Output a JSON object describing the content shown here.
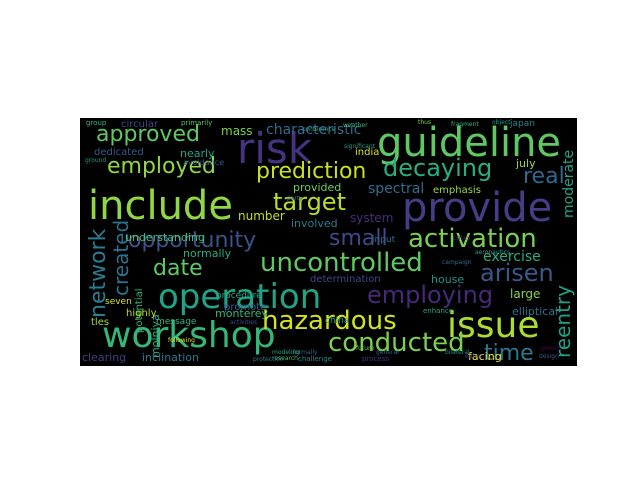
{
  "wordcloud": {
    "background": "#000000",
    "words": [
      {
        "text": "guideline",
        "color": "#5fc863"
      },
      {
        "text": "workshop",
        "color": "#35b779"
      },
      {
        "text": "include",
        "color": "#8fd744"
      },
      {
        "text": "provide",
        "color": "#433e85"
      },
      {
        "text": "operation",
        "color": "#20a386"
      },
      {
        "text": "risk",
        "color": "#46327e"
      },
      {
        "text": "issue",
        "color": "#addc30"
      },
      {
        "text": "approved",
        "color": "#5fc863"
      },
      {
        "text": "employed",
        "color": "#8fd744"
      },
      {
        "text": "decaying",
        "color": "#29af7f"
      },
      {
        "text": "target",
        "color": "#b8de29"
      },
      {
        "text": "activation",
        "color": "#7ad151"
      },
      {
        "text": "opportunity",
        "color": "#3b528b"
      },
      {
        "text": "uncontrolled",
        "color": "#5ec962"
      },
      {
        "text": "hazardous",
        "color": "#d2e21b"
      },
      {
        "text": "conducted",
        "color": "#7ad151"
      },
      {
        "text": "employing",
        "color": "#482878"
      },
      {
        "text": "prediction",
        "color": "#c8e020"
      },
      {
        "text": "arisen",
        "color": "#38598c"
      },
      {
        "text": "date",
        "color": "#5ec962"
      },
      {
        "text": "small",
        "color": "#3e4a89"
      },
      {
        "text": "time",
        "color": "#2a788e"
      },
      {
        "text": "network",
        "color": "#287d8e"
      },
      {
        "text": "created",
        "color": "#2c728e"
      },
      {
        "text": "reentry",
        "color": "#1fa188"
      },
      {
        "text": "characteristic",
        "color": "#31688e"
      },
      {
        "text": "real",
        "color": "#31688e"
      },
      {
        "text": "mass",
        "color": "#7ad151"
      },
      {
        "text": "exercise",
        "color": "#27ad81"
      },
      {
        "text": "moderate",
        "color": "#20a486"
      },
      {
        "text": "spectral",
        "color": "#2e6e8e"
      },
      {
        "text": "emphasis",
        "color": "#95d840"
      },
      {
        "text": "july",
        "color": "#9fda3a"
      },
      {
        "text": "india",
        "color": "#d8e219"
      },
      {
        "text": "provided",
        "color": "#6ece58"
      },
      {
        "text": "involved",
        "color": "#26818e"
      },
      {
        "text": "number",
        "color": "#c2df23"
      },
      {
        "text": "system",
        "color": "#472d7b"
      },
      {
        "text": "understanding",
        "color": "#3dbc74"
      },
      {
        "text": "normally",
        "color": "#28ae80"
      },
      {
        "text": "procedure",
        "color": "#22a785"
      },
      {
        "text": "promote",
        "color": "#32658e"
      },
      {
        "text": "monterey",
        "color": "#31b57b"
      },
      {
        "text": "determination",
        "color": "#3f4889"
      },
      {
        "text": "house",
        "color": "#21918c"
      },
      {
        "text": "large",
        "color": "#86d549"
      },
      {
        "text": "elliptical",
        "color": "#2c728e"
      },
      {
        "text": "message",
        "color": "#2db27d"
      },
      {
        "text": "highly",
        "color": "#b5de2b"
      },
      {
        "text": "potential",
        "color": "#2fb47c"
      },
      {
        "text": "molniya",
        "color": "#27ad81"
      },
      {
        "text": "seven",
        "color": "#d0e11c"
      },
      {
        "text": "circular",
        "color": "#3e4989"
      },
      {
        "text": "primarily",
        "color": "#50c46a"
      },
      {
        "text": "dedicated",
        "color": "#375a8c"
      },
      {
        "text": "nearly",
        "color": "#20a486"
      },
      {
        "text": "avoidance",
        "color": "#3b528b"
      },
      {
        "text": "inclination",
        "color": "#2a788e"
      },
      {
        "text": "clearing",
        "color": "#433e85"
      },
      {
        "text": "tles",
        "color": "#a0da39"
      },
      {
        "text": "china",
        "color": "#1e9b8a"
      },
      {
        "text": "facing",
        "color": "#fde725"
      },
      {
        "text": "input",
        "color": "#2d708e"
      },
      {
        "text": "japan",
        "color": "#26828e"
      },
      {
        "text": "following",
        "color": "#d5e21a"
      },
      {
        "text": "challenge",
        "color": "#25848e"
      },
      {
        "text": "enhance",
        "color": "#22a884"
      },
      {
        "text": "future",
        "color": "#6ccd5a"
      },
      {
        "text": "research",
        "color": "#3fbc73"
      },
      {
        "text": "process",
        "color": "#46337f"
      },
      {
        "text": "group",
        "color": "#34b679"
      },
      {
        "text": "weather",
        "color": "#38b977"
      },
      {
        "text": "party",
        "color": "#2c738e"
      },
      {
        "text": "ground",
        "color": "#1f9f88"
      },
      {
        "text": "design",
        "color": "#3b528b"
      },
      {
        "text": "activities",
        "color": "#3d4e8a"
      },
      {
        "text": "formally",
        "color": "#30698e"
      },
      {
        "text": "modeling",
        "color": "#21a685"
      },
      {
        "text": "campaign",
        "color": "#2d708e"
      },
      {
        "text": "policy",
        "color": "#481f70"
      },
      {
        "text": "bilateral",
        "color": "#228c8d"
      },
      {
        "text": "aeronautics",
        "color": "#1fa188"
      },
      {
        "text": "either",
        "color": "#3e4a89"
      },
      {
        "text": "general",
        "color": "#34608d"
      },
      {
        "text": "conference",
        "color": "#25ac82"
      },
      {
        "text": "thus",
        "color": "#7fd34e"
      },
      {
        "text": "object",
        "color": "#1e9c89"
      },
      {
        "text": "fragment",
        "color": "#35b779"
      },
      {
        "text": "period",
        "color": "#450457"
      },
      {
        "text": "protection",
        "color": "#287c8e"
      },
      {
        "text": "significant",
        "color": "#1f9e89"
      }
    ]
  }
}
